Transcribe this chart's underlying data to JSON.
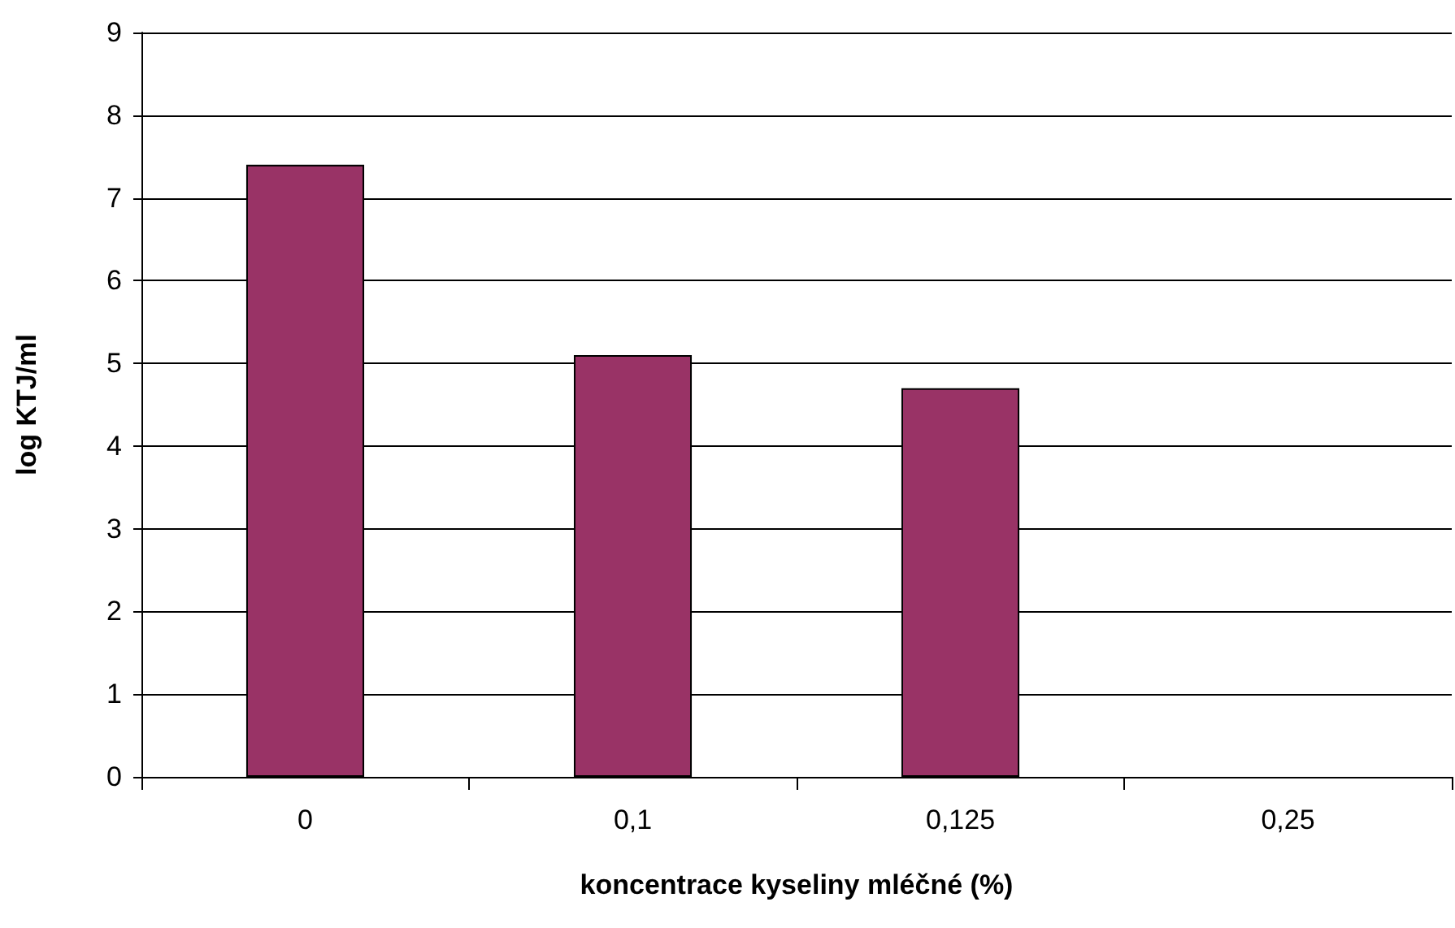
{
  "chart_data": {
    "type": "bar",
    "xlabel": "koncentrace kyseliny mléčné (%)",
    "ylabel": "log KTJ/ml",
    "categories": [
      "0",
      "0,1",
      "0,125",
      "0,25"
    ],
    "values": [
      7.4,
      5.1,
      4.7,
      null
    ],
    "color": "#993366",
    "ylim": [
      0,
      9
    ],
    "yticks": [
      0,
      1,
      2,
      3,
      4,
      5,
      6,
      7,
      8,
      9
    ],
    "grid": "y"
  }
}
